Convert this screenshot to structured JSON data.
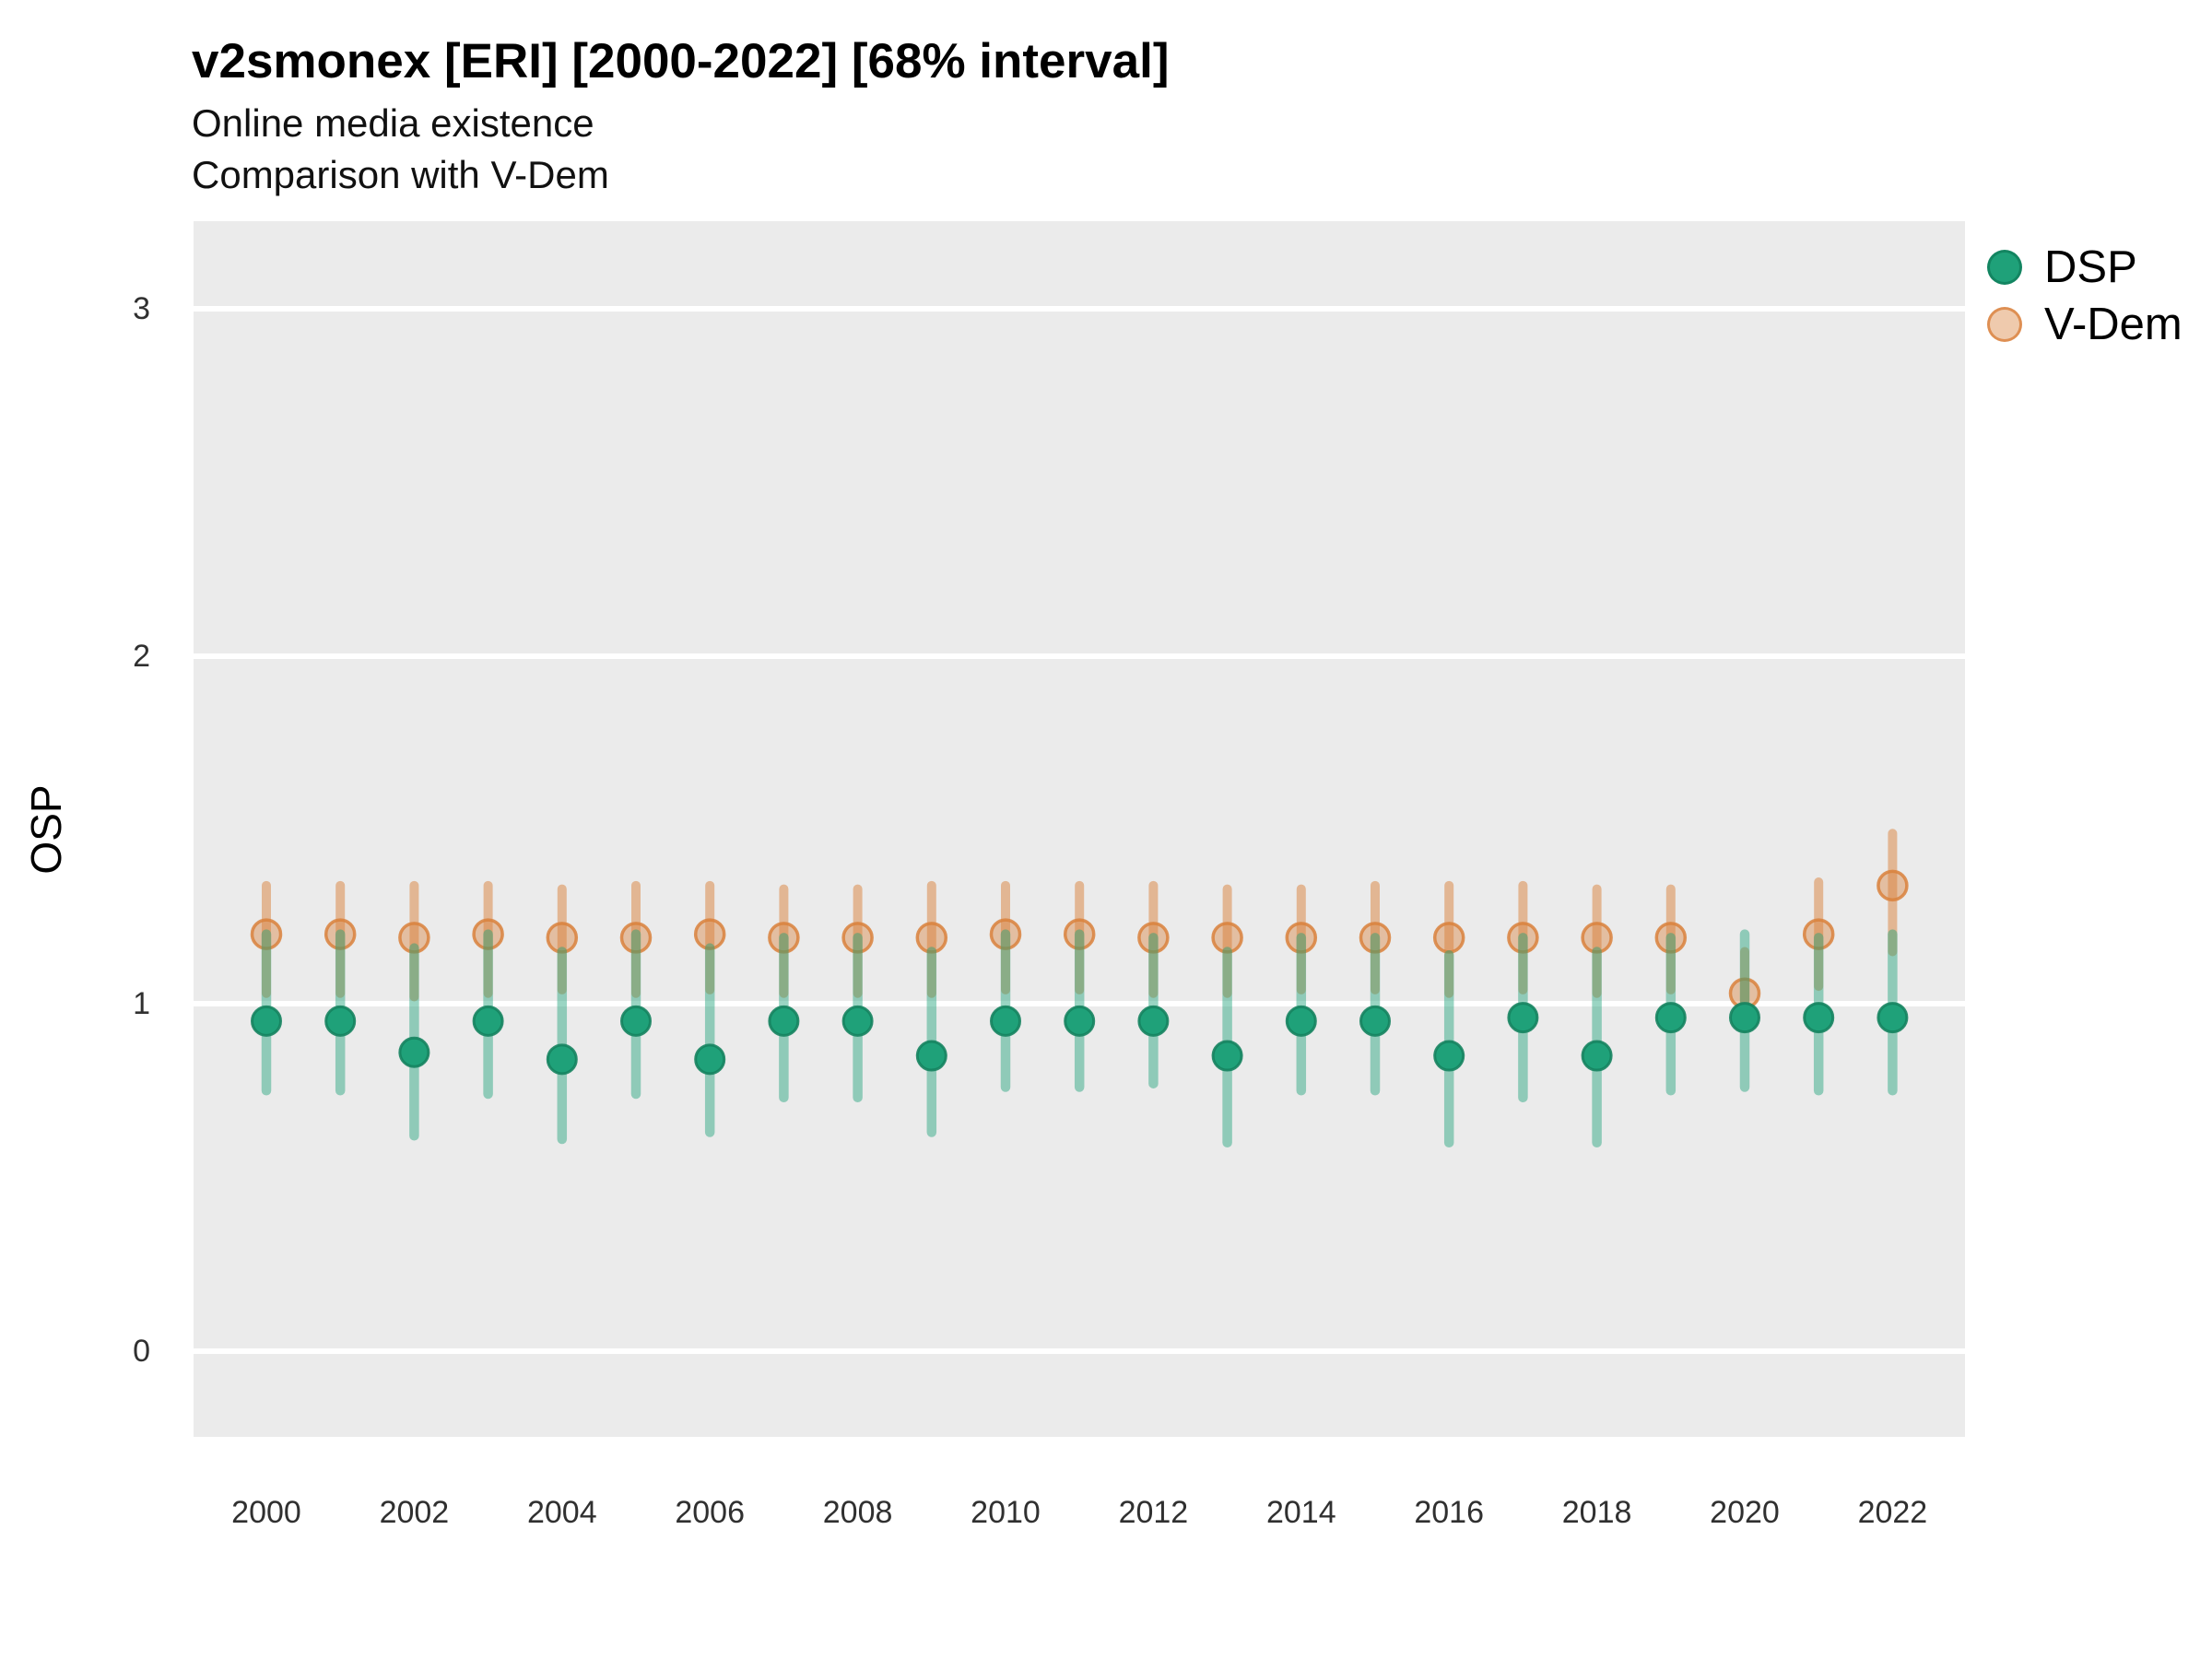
{
  "header": {
    "title": "v2smonex [ERI] [2000-2022] [68% interval]",
    "subtitle1": "Online media existence",
    "subtitle2": "Comparison with V-Dem"
  },
  "legend": {
    "items": [
      {
        "label": "DSP",
        "color": "#1FA179",
        "marker": "solid-circle"
      },
      {
        "label": "V-Dem",
        "color": "#D9813C",
        "marker": "outlined-translucent-circle"
      }
    ],
    "position": "right-top"
  },
  "colors": {
    "dsp_green": "#1FA179",
    "vdem_orange": "#D9813C",
    "panel_background": "#EBEBEB",
    "gridline": "#FFFFFF",
    "tick_text": "#303030"
  },
  "chart_data": {
    "type": "pointrange-scatter",
    "title": "v2smonex [ERI] [2000-2022] [68% interval]",
    "subtitle": "Online media existence",
    "subtitle2": "Comparison with V-Dem",
    "xlabel": "",
    "ylabel": "OSP",
    "x": [
      2000,
      2001,
      2002,
      2003,
      2004,
      2005,
      2006,
      2007,
      2008,
      2009,
      2010,
      2011,
      2012,
      2013,
      2014,
      2015,
      2016,
      2017,
      2018,
      2019,
      2020,
      2021,
      2022
    ],
    "x_tick_labels": [
      "2000",
      "2002",
      "2004",
      "2006",
      "2008",
      "2010",
      "2012",
      "2014",
      "2016",
      "2018",
      "2020",
      "2022"
    ],
    "y_ticks": [
      0,
      1,
      2,
      3
    ],
    "ylim": [
      -0.25,
      3.25
    ],
    "interval": "68%",
    "grid": "horizontal white major gridlines on gray panel",
    "legend_position": "right",
    "series": [
      {
        "name": "DSP",
        "color": "#1FA179",
        "est": [
          0.95,
          0.95,
          0.86,
          0.95,
          0.84,
          0.95,
          0.84,
          0.95,
          0.95,
          0.85,
          0.95,
          0.95,
          0.95,
          0.85,
          0.95,
          0.95,
          0.85,
          0.96,
          0.85,
          0.96,
          0.96,
          0.96,
          0.96
        ],
        "lo": [
          0.75,
          0.75,
          0.62,
          0.74,
          0.61,
          0.74,
          0.63,
          0.73,
          0.73,
          0.63,
          0.76,
          0.76,
          0.77,
          0.6,
          0.75,
          0.75,
          0.6,
          0.73,
          0.6,
          0.75,
          0.76,
          0.75,
          0.75
        ],
        "hi": [
          1.2,
          1.2,
          1.16,
          1.2,
          1.15,
          1.2,
          1.16,
          1.19,
          1.19,
          1.15,
          1.2,
          1.2,
          1.19,
          1.15,
          1.19,
          1.19,
          1.14,
          1.19,
          1.15,
          1.19,
          1.2,
          1.19,
          1.2
        ]
      },
      {
        "name": "V-Dem",
        "color": "#D9813C",
        "est": [
          1.2,
          1.2,
          1.19,
          1.2,
          1.19,
          1.19,
          1.2,
          1.19,
          1.19,
          1.19,
          1.2,
          1.2,
          1.19,
          1.19,
          1.19,
          1.19,
          1.19,
          1.19,
          1.19,
          1.19,
          1.03,
          1.2,
          1.34
        ],
        "lo": [
          1.03,
          1.03,
          1.02,
          1.03,
          1.04,
          1.03,
          1.04,
          1.03,
          1.03,
          1.03,
          1.04,
          1.04,
          1.03,
          1.03,
          1.04,
          1.04,
          1.03,
          1.04,
          1.03,
          1.04,
          0.93,
          1.05,
          1.15
        ],
        "hi": [
          1.34,
          1.34,
          1.34,
          1.34,
          1.33,
          1.34,
          1.34,
          1.33,
          1.33,
          1.34,
          1.34,
          1.34,
          1.34,
          1.33,
          1.33,
          1.34,
          1.34,
          1.34,
          1.33,
          1.33,
          1.15,
          1.35,
          1.49
        ]
      }
    ]
  }
}
